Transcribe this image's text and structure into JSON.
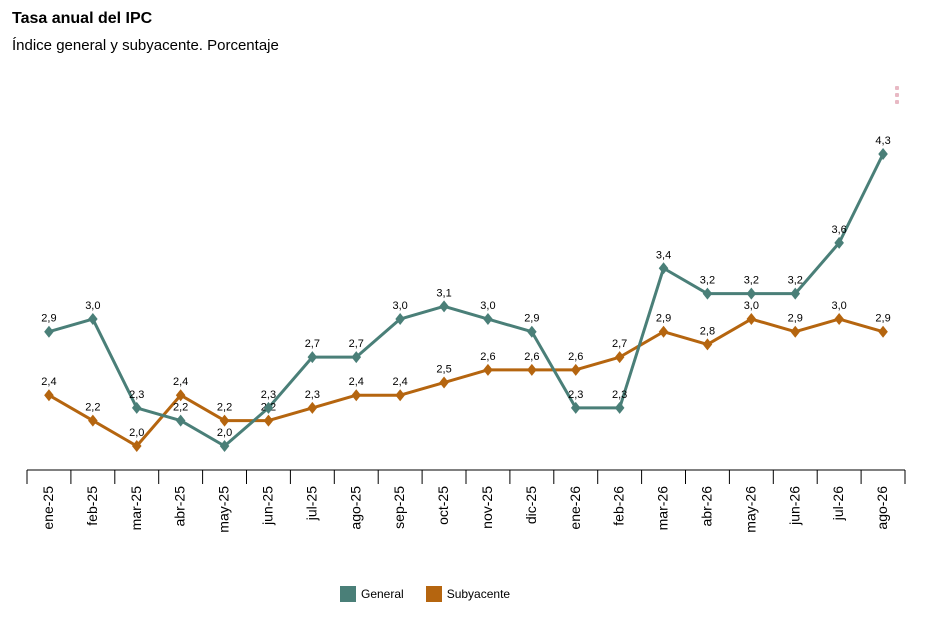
{
  "chart_data": {
    "type": "line",
    "title": "Tasa anual del IPC",
    "subtitle": "Índice general y subyacente. Porcentaje",
    "categories": [
      "ene-25",
      "feb-25",
      "mar-25",
      "abr-25",
      "may-25",
      "jun-25",
      "jul-25",
      "ago-25",
      "sep-25",
      "oct-25",
      "nov-25",
      "dic-25",
      "ene-26",
      "feb-26",
      "mar-26",
      "abr-26",
      "may-26",
      "jun-26",
      "jul-26",
      "ago-26"
    ],
    "series": [
      {
        "name": "General",
        "color": "#4a7f78",
        "values": [
          2.9,
          3.0,
          2.3,
          2.2,
          2.0,
          2.3,
          2.7,
          2.7,
          3.0,
          3.1,
          3.0,
          2.9,
          2.3,
          2.3,
          3.4,
          3.2,
          3.2,
          3.2,
          3.6,
          4.3
        ],
        "labels": [
          "2,9",
          "3,0",
          "2,3",
          "2,2",
          "2,0",
          "2,3",
          "2,7",
          "2,7",
          "3,0",
          "3,1",
          "3,0",
          "2,9",
          "2,3",
          "2,3",
          "3,4",
          "3,2",
          "3,2",
          "3,2",
          "3,6",
          "4,3"
        ]
      },
      {
        "name": "Subyacente",
        "color": "#b5650f",
        "values": [
          2.4,
          2.2,
          2.0,
          2.4,
          2.2,
          2.2,
          2.3,
          2.4,
          2.4,
          2.5,
          2.6,
          2.6,
          2.6,
          2.7,
          2.9,
          2.8,
          3.0,
          2.9,
          3.0,
          2.9
        ],
        "labels": [
          "2,4",
          "2,2",
          "2,0",
          "2,4",
          "2,2",
          "2,2",
          "2,3",
          "2,4",
          "2,4",
          "2,5",
          "2,6",
          "2,6",
          "2,6",
          "2,7",
          "2,9",
          "2,8",
          "3,0",
          "2,9",
          "3,0",
          "2,9"
        ]
      }
    ],
    "legend_position": "bottom-center",
    "grid": false
  }
}
